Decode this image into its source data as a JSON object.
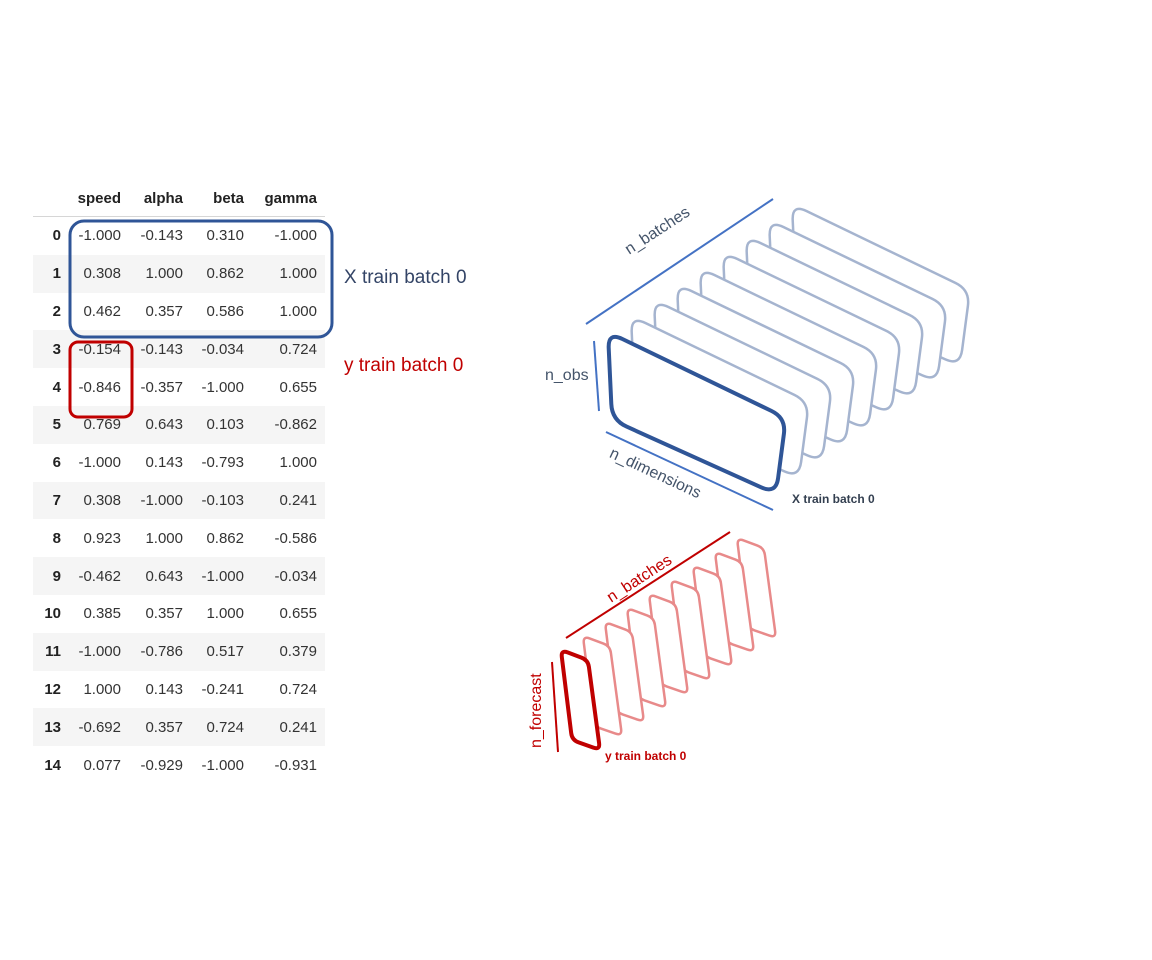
{
  "table": {
    "columns": [
      "speed",
      "alpha",
      "beta",
      "gamma"
    ],
    "rows": [
      {
        "index": "0",
        "values": [
          "-1.000",
          "-0.143",
          "0.310",
          "-1.000"
        ]
      },
      {
        "index": "1",
        "values": [
          "0.308",
          "1.000",
          "0.862",
          "1.000"
        ]
      },
      {
        "index": "2",
        "values": [
          "0.462",
          "0.357",
          "0.586",
          "1.000"
        ]
      },
      {
        "index": "3",
        "values": [
          "-0.154",
          "-0.143",
          "-0.034",
          "0.724"
        ]
      },
      {
        "index": "4",
        "values": [
          "-0.846",
          "-0.357",
          "-1.000",
          "0.655"
        ]
      },
      {
        "index": "5",
        "values": [
          "0.769",
          "0.643",
          "0.103",
          "-0.862"
        ]
      },
      {
        "index": "6",
        "values": [
          "-1.000",
          "0.143",
          "-0.793",
          "1.000"
        ]
      },
      {
        "index": "7",
        "values": [
          "0.308",
          "-1.000",
          "-0.103",
          "0.241"
        ]
      },
      {
        "index": "8",
        "values": [
          "0.923",
          "1.000",
          "0.862",
          "-0.586"
        ]
      },
      {
        "index": "9",
        "values": [
          "-0.462",
          "0.643",
          "-1.000",
          "-0.034"
        ]
      },
      {
        "index": "10",
        "values": [
          "0.385",
          "0.357",
          "1.000",
          "0.655"
        ]
      },
      {
        "index": "11",
        "values": [
          "-1.000",
          "-0.786",
          "0.517",
          "0.379"
        ]
      },
      {
        "index": "12",
        "values": [
          "1.000",
          "0.143",
          "-0.241",
          "0.724"
        ]
      },
      {
        "index": "13",
        "values": [
          "-0.692",
          "0.357",
          "0.724",
          "0.241"
        ]
      },
      {
        "index": "14",
        "values": [
          "0.077",
          "-0.929",
          "-1.000",
          "-0.931"
        ]
      }
    ]
  },
  "labels": {
    "x_train_batch": "X train batch 0",
    "y_train_batch": "y train batch 0",
    "x_diagram": {
      "n_batches": "n_batches",
      "n_obs": "n_obs",
      "n_dimensions": "n_dimensions",
      "caption": "X train batch 0"
    },
    "y_diagram": {
      "n_batches": "n_batches",
      "n_forecast": "n_forecast",
      "caption": "y train batch 0"
    }
  },
  "colors": {
    "blue_dark": "#2f5597",
    "blue_light": "#a5b4cf",
    "blue_line": "#4472c4",
    "red_dark": "#c00000",
    "red_light": "#e88a8a"
  }
}
